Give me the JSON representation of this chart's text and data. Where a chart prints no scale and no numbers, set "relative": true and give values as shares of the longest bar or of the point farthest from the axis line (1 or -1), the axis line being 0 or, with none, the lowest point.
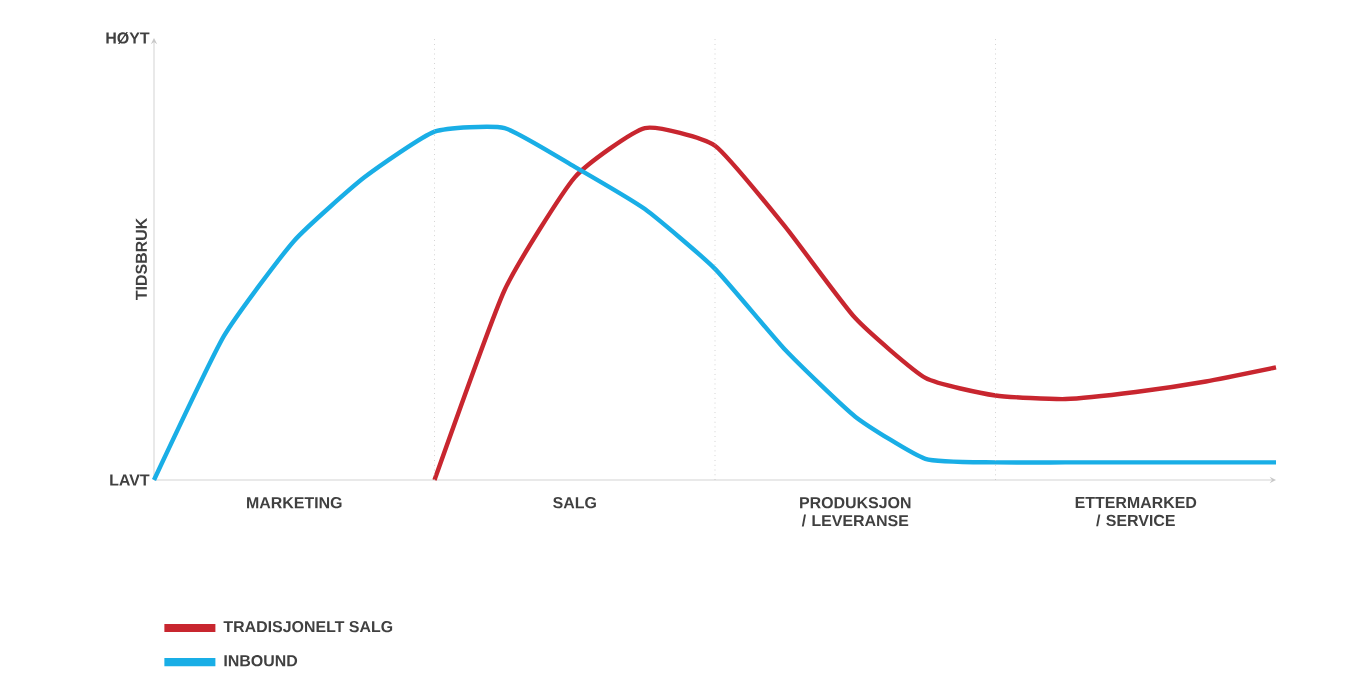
{
  "chart_data": {
    "type": "line",
    "ylabel": "TIDSBRUK",
    "relative": true,
    "categories": [
      null,
      null,
      null,
      null,
      null,
      null,
      null,
      null,
      null,
      null,
      null,
      null,
      null,
      null,
      null,
      null,
      null
    ],
    "annotations": [
      "HØYT",
      "LAVT",
      "MARKETING",
      "SALG",
      "PRODUKSJON / LEVERANSE",
      "ETTERMARKED / SERVICE"
    ],
    "grid": "x",
    "legend": "bottom left",
    "marker": "none",
    "line_style": "solid",
    "series": [
      {
        "name": "TRADISJONELT SALG",
        "color": "#c8262f",
        "values": [
          null,
          null,
          null,
          null,
          0,
          0.54,
          0.86,
          1,
          0.95,
          0.72,
          0.46,
          0.29,
          0.24,
          0.23,
          0.25,
          0.28,
          0.32
        ]
      },
      {
        "name": "INBOUND",
        "color": "#19aee6",
        "values": [
          0,
          0.41,
          0.68,
          0.86,
          0.99,
          1,
          0.89,
          0.77,
          0.6,
          0.37,
          0.18,
          0.06,
          0.05,
          0.05,
          0.05,
          0.05,
          0.05
        ]
      }
    ]
  }
}
